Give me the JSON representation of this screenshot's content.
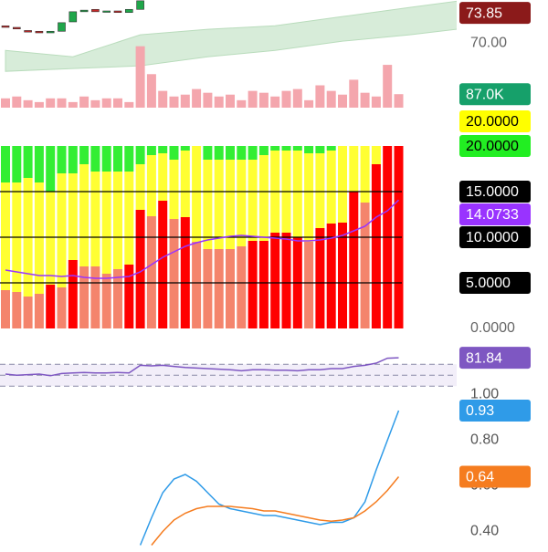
{
  "chart_data": [
    {
      "type": "candlestick",
      "open": [
        72.2,
        72.0,
        71.6,
        71.5,
        71.3,
        71.5,
        72.7,
        74.0,
        74.3,
        74.0,
        74.1,
        73.9,
        74.3
      ],
      "close": [
        72.0,
        71.8,
        71.4,
        71.3,
        71.5,
        72.6,
        74.0,
        74.2,
        74.0,
        74.1,
        73.9,
        74.3,
        75.4
      ],
      "up_color": "#1fa64a",
      "down_color": "#c62828",
      "ylim": [
        61.5,
        75.5
      ],
      "yticks": [
        {
          "value": 70,
          "label": "70.00"
        }
      ],
      "cloud": {
        "x": [
          0,
          6,
          12,
          18,
          24,
          30,
          36,
          41
        ],
        "upper": [
          69.06,
          68.24,
          71.05,
          71.75,
          72.21,
          73.38,
          74.55,
          75.5
        ],
        "lower": [
          66.38,
          66.73,
          67.08,
          68.24,
          69.06,
          70.23,
          71.05,
          71.9
        ],
        "color": "#d7ecd9"
      },
      "last_price": {
        "value": 73.85,
        "label": "73.85",
        "color": "#8b1a1a"
      },
      "volume": {
        "values": [
          60000,
          72000,
          48000,
          36000,
          60000,
          60000,
          36000,
          72000,
          48000,
          60000,
          60000,
          36000,
          396000,
          216000,
          108000,
          72000,
          84000,
          120000,
          96000,
          72000,
          84000,
          48000,
          108000,
          96000,
          72000,
          108000,
          120000,
          48000,
          144000,
          108000,
          84000,
          180000,
          96000,
          72000,
          276000,
          87000
        ],
        "last_label": "87.0K",
        "color": "#f4a6ad",
        "label_color": "#16a06a",
        "ylim": [
          0,
          400000
        ]
      }
    },
    {
      "type": "stacked-bar",
      "series": [
        {
          "values": [
            4.2,
            4.0,
            3.5,
            3.8,
            4.8,
            4.5,
            7.5,
            6.8,
            6.8,
            6.0,
            6.5,
            7.0,
            13.0,
            12.3,
            14.0,
            12.0,
            12.2,
            9.5,
            8.7,
            8.7,
            8.7,
            9.0,
            9.6,
            9.6,
            10.5,
            10.5,
            10.0,
            9.5,
            11.0,
            11.5,
            11.6,
            15.0,
            13.8,
            18.0,
            20.0,
            20.0
          ],
          "colors": [
            "#f4846c",
            "#f4846c",
            "#f4846c",
            "#f4846c",
            "#ff0000",
            "#f4846c",
            "#ff0000",
            "#f4846c",
            "#f4846c",
            "#f4846c",
            "#f4846c",
            "#ff0000",
            "#ff0000",
            "#f4846c",
            "#ff0000",
            "#f4846c",
            "#ff0000",
            "#f4846c",
            "#f4846c",
            "#f4846c",
            "#f4846c",
            "#f4846c",
            "#ff0000",
            "#ff0000",
            "#ff0000",
            "#ff0000",
            "#ff0000",
            "#f4846c",
            "#ff0000",
            "#ff0000",
            "#ff0000",
            "#ff0000",
            "#f4846c",
            "#ff0000",
            "#ff0000",
            "#ff0000"
          ]
        },
        {
          "color": "#ffff33",
          "values": [
            11.8,
            12,
            13,
            12.2,
            10.2,
            12.5,
            9.5,
            11.2,
            10.4,
            11.2,
            10.7,
            10.2,
            5,
            6.7,
            5.2,
            6.5,
            7.3,
            10.5,
            9.8,
            9.8,
            9.8,
            9.5,
            8.9,
            9.4,
            9,
            9,
            9.5,
            9.7,
            8.2,
            8,
            8.4,
            5,
            6.2,
            2,
            0,
            0
          ]
        },
        {
          "color": "#33ee33",
          "values": [
            4,
            4,
            3.5,
            4,
            5,
            3,
            3,
            2,
            2.8,
            2.8,
            2.8,
            2.8,
            2,
            1,
            0.8,
            1.5,
            0.5,
            0,
            1.5,
            1.5,
            1.5,
            1.5,
            1.5,
            1,
            0.5,
            0.5,
            0.5,
            0.8,
            0.8,
            0.5,
            0,
            0,
            0,
            0,
            0,
            0
          ]
        }
      ],
      "line": {
        "color": "#9933ff",
        "values": [
          6.4,
          6.2,
          6.0,
          5.8,
          5.8,
          5.7,
          5.8,
          5.6,
          5.5,
          5.5,
          5.6,
          5.7,
          6.2,
          7.0,
          7.8,
          8.4,
          9.0,
          9.4,
          9.7,
          9.9,
          10.1,
          10.2,
          10.1,
          10.0,
          9.9,
          9.8,
          9.6,
          9.6,
          9.7,
          9.9,
          10.2,
          10.7,
          11.2,
          12.2,
          12.9,
          14.0733
        ]
      },
      "ylim": [
        0,
        20
      ],
      "yticks": [
        {
          "value": 0,
          "label": "0.0000"
        },
        {
          "value": 5,
          "label": "5.0000"
        },
        {
          "value": 10,
          "label": "10.0000"
        },
        {
          "value": 15,
          "label": "15.0000"
        }
      ],
      "markers": [
        {
          "value": 20,
          "label": "20.0000",
          "color": "#ffff00"
        },
        {
          "value": 20,
          "label": "20.0000",
          "color": "#22ee22"
        }
      ]
    },
    {
      "type": "line",
      "ylim": [
        22,
        102
      ],
      "bands": [
        30,
        50,
        70
      ],
      "band_color": "#7e57c2",
      "series": [
        {
          "color": "#7e57c2",
          "values": [
            52,
            50,
            51,
            52,
            49,
            53,
            54,
            55,
            54,
            54,
            55,
            54,
            68,
            67,
            68,
            66,
            64,
            63,
            62,
            61,
            60,
            58,
            60,
            60,
            59,
            59,
            58,
            60,
            60,
            62,
            62,
            66,
            68,
            72,
            81,
            81.84
          ]
        }
      ]
    },
    {
      "type": "line",
      "ylim": [
        0.33,
        1.05
      ],
      "yticks": [
        {
          "value": 0.4,
          "label": "0.40"
        },
        {
          "value": 0.6,
          "label": "0.60"
        },
        {
          "value": 0.8,
          "label": "0.80"
        },
        {
          "value": 1,
          "label": "1.00"
        }
      ],
      "series": [
        {
          "color": "#2f9be8",
          "values": [
            null,
            null,
            null,
            null,
            null,
            null,
            null,
            null,
            null,
            null,
            null,
            null,
            0.34,
            0.46,
            0.57,
            0.63,
            0.65,
            0.62,
            0.57,
            0.52,
            0.5,
            0.49,
            0.48,
            0.47,
            0.47,
            0.46,
            0.45,
            0.44,
            0.43,
            0.44,
            0.44,
            0.46,
            0.53,
            0.67,
            0.8,
            0.93
          ]
        },
        {
          "color": "#f57c1f",
          "values": [
            null,
            null,
            null,
            null,
            null,
            null,
            null,
            null,
            null,
            null,
            null,
            null,
            null,
            0.34,
            0.4,
            0.45,
            0.48,
            0.5,
            0.51,
            0.51,
            0.51,
            0.505,
            0.5,
            0.49,
            0.49,
            0.48,
            0.47,
            0.46,
            0.45,
            0.445,
            0.45,
            0.46,
            0.49,
            0.53,
            0.58,
            0.64
          ]
        }
      ]
    }
  ]
}
